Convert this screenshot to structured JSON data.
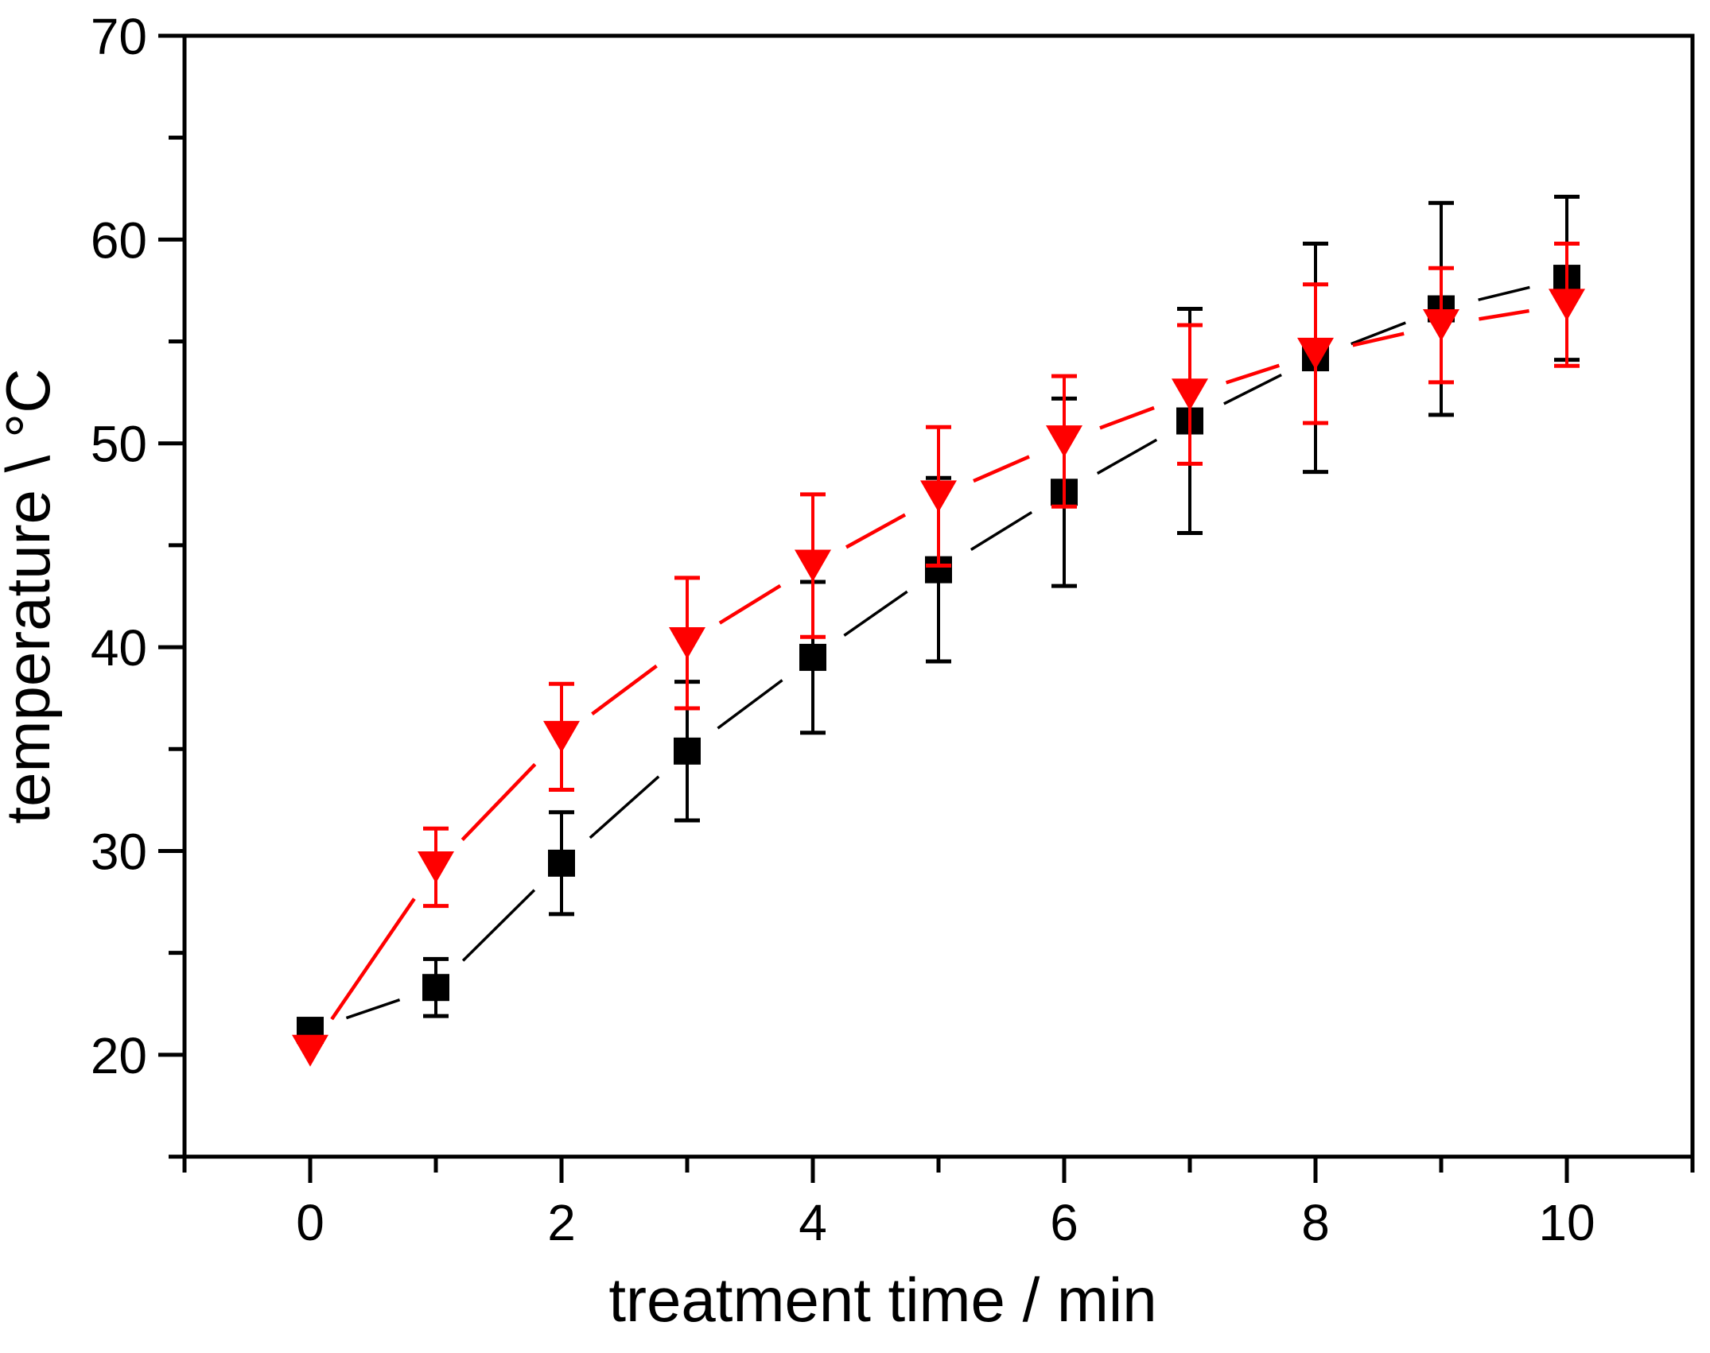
{
  "chart_data": {
    "type": "line",
    "title": "",
    "xlabel": "treatment time / min",
    "ylabel": "temperature \\ °C",
    "xlim": [
      -1,
      11
    ],
    "ylim": [
      15,
      70
    ],
    "grid": false,
    "legend": null,
    "background_color": "#ffffff",
    "axis_color": "#000000",
    "x_major_ticks": [
      0,
      2,
      4,
      6,
      8,
      10
    ],
    "x_minor_ticks": [
      -1,
      1,
      3,
      5,
      7,
      9,
      11
    ],
    "y_major_ticks": [
      20,
      30,
      40,
      50,
      60,
      70
    ],
    "y_minor_ticks": [
      15,
      25,
      35,
      45,
      55,
      65
    ],
    "x": [
      0,
      1,
      2,
      3,
      4,
      5,
      6,
      7,
      8,
      9,
      10
    ],
    "series": [
      {
        "name": "black-squares",
        "marker": "square",
        "color": "#000000",
        "values": [
          21.2,
          23.3,
          29.4,
          34.9,
          39.5,
          43.8,
          47.6,
          51.1,
          54.2,
          56.6,
          58.1
        ],
        "errors": [
          0,
          1.4,
          2.5,
          3.4,
          3.7,
          4.5,
          4.6,
          5.5,
          5.6,
          5.2,
          4.0
        ]
      },
      {
        "name": "red-triangles",
        "marker": "triangle-down",
        "color": "#ff0000",
        "values": [
          20.2,
          29.2,
          35.6,
          40.2,
          44.0,
          47.4,
          50.1,
          52.4,
          54.4,
          55.8,
          56.8
        ],
        "errors": [
          0,
          1.9,
          2.6,
          3.2,
          3.5,
          3.4,
          3.2,
          3.4,
          3.4,
          2.8,
          3.0
        ]
      }
    ]
  }
}
